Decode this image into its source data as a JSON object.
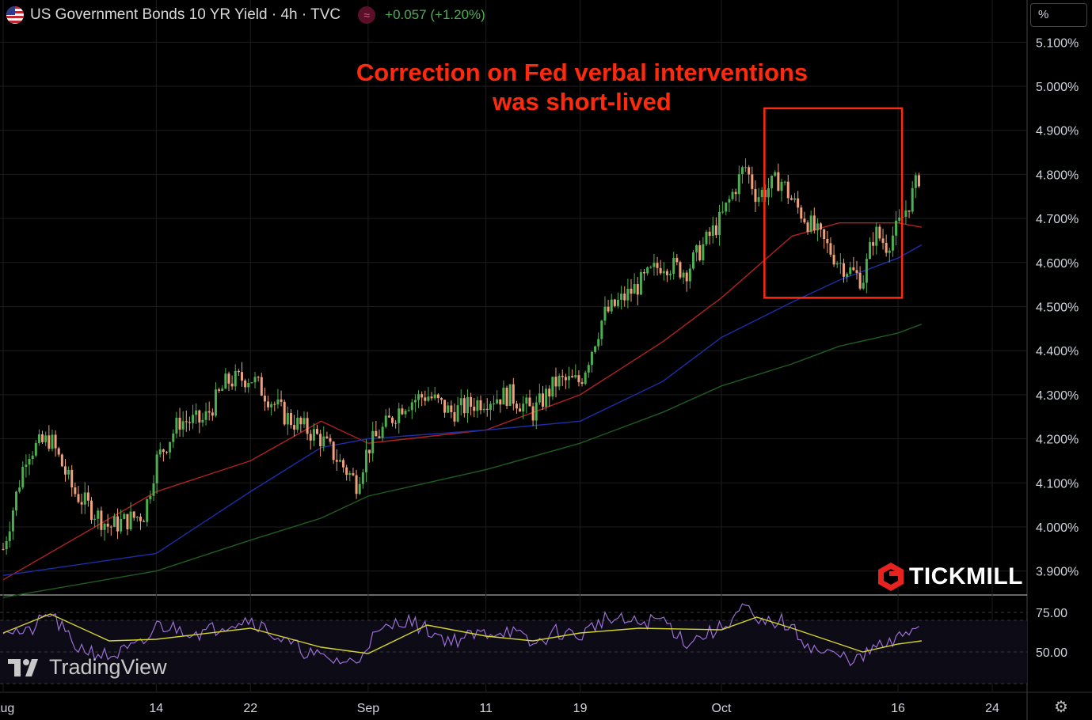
{
  "header": {
    "title": "US Government Bonds 10 YR Yield · 4h · TVC",
    "change": "+0.057 (+1.20%)",
    "scale_label": "%"
  },
  "annotation": {
    "line1": "Correction on Fed verbal interventions",
    "line2": "was short-lived"
  },
  "branding": {
    "tradingview": "TradingView",
    "tickmill": "TICKMILL"
  },
  "colors": {
    "background": "#000000",
    "up": "#4caf50",
    "down": "#f0a07a",
    "ma_red": "#b22222",
    "ma_blue": "#1c2fa8",
    "ma_green": "#1f5e1f",
    "rsi": "#9b6fd6",
    "rsi_ma": "#d4d42a",
    "annotation": "#ff2a0d"
  },
  "icons": [
    "us-flag-icon",
    "wave-icon",
    "gear-icon",
    "tradingview-logo-icon",
    "tickmill-logo-icon"
  ],
  "chart_data": {
    "type": "candlestick",
    "title": "US Government Bonds 10 YR Yield · 4h · TVC",
    "price_ticks": [
      "5.100%",
      "5.000%",
      "4.900%",
      "4.800%",
      "4.700%",
      "4.600%",
      "4.500%",
      "4.400%",
      "4.300%",
      "4.200%",
      "4.100%",
      "4.000%",
      "3.900%"
    ],
    "ylim": [
      3.84,
      5.15
    ],
    "x_ticks": [
      "Aug",
      "14",
      "22",
      "Sep",
      "11",
      "19",
      "Oct",
      "16",
      "24"
    ],
    "price_path": [
      [
        "Aug",
        3.95
      ],
      [
        "Aug 3",
        4.17
      ],
      [
        "Aug 5",
        4.2
      ],
      [
        "Aug 7",
        4.08
      ],
      [
        "Aug 10",
        4.0
      ],
      [
        "Aug 13",
        4.03
      ],
      [
        "Aug 14",
        4.15
      ],
      [
        "Aug 16",
        4.24
      ],
      [
        "Aug 18",
        4.24
      ],
      [
        "Aug 20",
        4.33
      ],
      [
        "Aug 22",
        4.34
      ],
      [
        "Aug 25",
        4.25
      ],
      [
        "Aug 28",
        4.2
      ],
      [
        "Aug 31",
        4.1
      ],
      [
        "Sep",
        4.18
      ],
      [
        "Sep 4",
        4.28
      ],
      [
        "Sep 6",
        4.3
      ],
      [
        "Sep 8",
        4.26
      ],
      [
        "Sep 11",
        4.29
      ],
      [
        "Sep 13",
        4.3
      ],
      [
        "Sep 15",
        4.26
      ],
      [
        "Sep 17",
        4.33
      ],
      [
        "Sep 19",
        4.33
      ],
      [
        "Sep 21",
        4.48
      ],
      [
        "Sep 24",
        4.55
      ],
      [
        "Sep 26",
        4.6
      ],
      [
        "Sep 28",
        4.58
      ],
      [
        "Oct",
        4.7
      ],
      [
        "Oct 3",
        4.82
      ],
      [
        "Oct 4",
        4.75
      ],
      [
        "Oct 6",
        4.79
      ],
      [
        "Oct 7",
        4.74
      ],
      [
        "Oct 9",
        4.67
      ],
      [
        "Oct 11",
        4.6
      ],
      [
        "Oct 13",
        4.56
      ],
      [
        "Oct 14",
        4.67
      ],
      [
        "Oct 15",
        4.64
      ],
      [
        "Oct 16",
        4.68
      ],
      [
        "Oct 17",
        4.74
      ],
      [
        "Oct 18",
        4.81
      ]
    ],
    "moving_averages": [
      {
        "color": "red",
        "path": [
          [
            "Aug",
            3.88
          ],
          [
            "Aug 14",
            4.08
          ],
          [
            "Aug 22",
            4.15
          ],
          [
            "Aug 28",
            4.24
          ],
          [
            "Sep",
            4.19
          ],
          [
            "Sep 11",
            4.22
          ],
          [
            "Sep 19",
            4.3
          ],
          [
            "Sep 26",
            4.42
          ],
          [
            "Oct",
            4.52
          ],
          [
            "Oct 7",
            4.66
          ],
          [
            "Oct 11",
            4.69
          ],
          [
            "Oct 16",
            4.69
          ],
          [
            "Oct 18",
            4.68
          ]
        ]
      },
      {
        "color": "blue",
        "path": [
          [
            "Aug",
            3.89
          ],
          [
            "Aug 14",
            3.94
          ],
          [
            "Aug 22",
            4.08
          ],
          [
            "Aug 28",
            4.18
          ],
          [
            "Sep",
            4.2
          ],
          [
            "Sep 11",
            4.22
          ],
          [
            "Sep 19",
            4.24
          ],
          [
            "Sep 26",
            4.33
          ],
          [
            "Oct",
            4.43
          ],
          [
            "Oct 7",
            4.51
          ],
          [
            "Oct 11",
            4.56
          ],
          [
            "Oct 16",
            4.61
          ],
          [
            "Oct 18",
            4.64
          ]
        ]
      },
      {
        "color": "green",
        "path": [
          [
            "Aug",
            3.84
          ],
          [
            "Aug 14",
            3.9
          ],
          [
            "Aug 22",
            3.97
          ],
          [
            "Aug 28",
            4.02
          ],
          [
            "Sep",
            4.07
          ],
          [
            "Sep 11",
            4.13
          ],
          [
            "Sep 19",
            4.19
          ],
          [
            "Sep 26",
            4.26
          ],
          [
            "Oct",
            4.32
          ],
          [
            "Oct 7",
            4.37
          ],
          [
            "Oct 11",
            4.41
          ],
          [
            "Oct 16",
            4.44
          ],
          [
            "Oct 18",
            4.46
          ]
        ]
      }
    ],
    "highlight_box": {
      "x_range": [
        "Oct 6",
        "Oct 15"
      ],
      "y_range": [
        4.52,
        4.95
      ]
    },
    "rsi": {
      "ticks": [
        "75.00",
        "50.00"
      ],
      "ylim": [
        30,
        85
      ],
      "levels": [
        70,
        30
      ],
      "path": [
        [
          "Aug",
          66
        ],
        [
          "Aug 3",
          61
        ],
        [
          "Aug 5",
          75
        ],
        [
          "Aug 7",
          54
        ],
        [
          "Aug 10",
          47
        ],
        [
          "Aug 13",
          55
        ],
        [
          "Aug 14",
          67
        ],
        [
          "Aug 18",
          62
        ],
        [
          "Aug 20",
          68
        ],
        [
          "Aug 22",
          71
        ],
        [
          "Aug 25",
          56
        ],
        [
          "Aug 28",
          46
        ],
        [
          "Aug 31",
          43
        ],
        [
          "Sep",
          57
        ],
        [
          "Sep 4",
          71
        ],
        [
          "Sep 6",
          64
        ],
        [
          "Sep 8",
          57
        ],
        [
          "Sep 11",
          62
        ],
        [
          "Sep 13",
          64
        ],
        [
          "Sep 15",
          54
        ],
        [
          "Sep 17",
          63
        ],
        [
          "Sep 19",
          60
        ],
        [
          "Sep 21",
          71
        ],
        [
          "Sep 24",
          68
        ],
        [
          "Sep 26",
          71
        ],
        [
          "Sep 28",
          56
        ],
        [
          "Oct",
          65
        ],
        [
          "Oct 3",
          79
        ],
        [
          "Oct 4",
          67
        ],
        [
          "Oct 6",
          70
        ],
        [
          "Oct 7",
          64
        ],
        [
          "Oct 9",
          51
        ],
        [
          "Oct 11",
          47
        ],
        [
          "Oct 13",
          45
        ],
        [
          "Oct 14",
          54
        ],
        [
          "Oct 15",
          53
        ],
        [
          "Oct 16",
          58
        ],
        [
          "Oct 18",
          70
        ]
      ],
      "ma_path": [
        [
          "Aug",
          62
        ],
        [
          "Aug 5",
          74
        ],
        [
          "Aug 10",
          57
        ],
        [
          "Aug 14",
          58
        ],
        [
          "Aug 22",
          65
        ],
        [
          "Aug 28",
          53
        ],
        [
          "Sep",
          49
        ],
        [
          "Sep 6",
          67
        ],
        [
          "Sep 11",
          60
        ],
        [
          "Sep 15",
          57
        ],
        [
          "Sep 19",
          62
        ],
        [
          "Sep 24",
          65
        ],
        [
          "Oct",
          64
        ],
        [
          "Oct 4",
          72
        ],
        [
          "Oct 7",
          65
        ],
        [
          "Oct 11",
          55
        ],
        [
          "Oct 13",
          50
        ],
        [
          "Oct 16",
          55
        ],
        [
          "Oct 18",
          57
        ]
      ]
    }
  }
}
